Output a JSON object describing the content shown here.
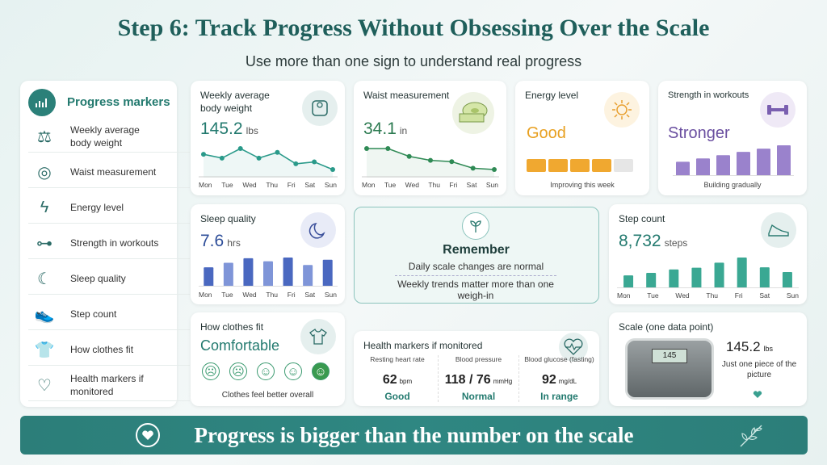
{
  "title": "Step 6: Track Progress Without Obsessing Over the Scale",
  "subtitle": "Use more than one sign to understand real progress",
  "sidebar": {
    "heading": "Progress markers",
    "items": [
      {
        "label": "Weekly average body weight",
        "icon": "scale-icon"
      },
      {
        "label": "Waist measurement",
        "icon": "tape-measure-icon"
      },
      {
        "label": "Energy level",
        "icon": "lightning-icon"
      },
      {
        "label": "Strength in workouts",
        "icon": "dumbbell-icon"
      },
      {
        "label": "Sleep quality",
        "icon": "moon-icon"
      },
      {
        "label": "Step count",
        "icon": "shoe-icon"
      },
      {
        "label": "How clothes fit",
        "icon": "shirt-icon"
      },
      {
        "label": "Health markers if monitored",
        "icon": "heart-icon"
      }
    ]
  },
  "days": [
    "Mon",
    "Tue",
    "Wed",
    "Thu",
    "Fri",
    "Sat",
    "Sun"
  ],
  "weight": {
    "title": "Weekly average body weight",
    "value": "145.2",
    "unit": "lbs",
    "series": [
      146.0,
      145.8,
      146.3,
      145.8,
      146.1,
      145.5,
      145.6,
      145.2
    ]
  },
  "waist": {
    "title": "Waist measurement",
    "value": "34.1",
    "unit": "in",
    "series": [
      34.9,
      34.9,
      34.6,
      34.45,
      34.4,
      34.15,
      34.1
    ]
  },
  "energy": {
    "title": "Energy level",
    "value": "Good",
    "caption": "Improving this week",
    "filled": 4,
    "total": 5
  },
  "strength": {
    "title": "Strength in workouts",
    "value": "Stronger",
    "caption": "Building gradually",
    "bars": [
      2,
      3,
      4,
      5,
      6,
      7
    ]
  },
  "sleep": {
    "title": "Sleep quality",
    "value": "7.6",
    "unit": "hrs",
    "bars": [
      6.6,
      7.2,
      7.8,
      7.4,
      7.9,
      6.9,
      7.6
    ]
  },
  "remember": {
    "title": "Remember",
    "line1": "Daily scale changes are normal",
    "line2": "Weekly trends matter more than one weigh-in"
  },
  "steps": {
    "title": "Step count",
    "value": "8,732",
    "unit": "steps",
    "bars": [
      6200,
      6800,
      7600,
      8000,
      9200,
      10400,
      8100,
      7000
    ]
  },
  "clothes": {
    "title": "How clothes fit",
    "value": "Comfortable",
    "caption": "Clothes feel better overall",
    "selected": 5
  },
  "health": {
    "title": "Health markers if monitored",
    "items": [
      {
        "label": "Resting heart rate",
        "value": "62",
        "unit": "bpm",
        "status": "Good"
      },
      {
        "label": "Blood pressure",
        "value": "118 / 76",
        "unit": "mmHg",
        "status": "Normal"
      },
      {
        "label": "Blood glucose (fasting)",
        "value": "92",
        "unit": "mg/dL",
        "status": "In range"
      }
    ]
  },
  "scale": {
    "title": "Scale (one data point)",
    "value": "145.2",
    "unit": "lbs",
    "caption": "Just one piece of the picture",
    "display": "145"
  },
  "banner": "Progress is bigger than the number on the scale",
  "colors": {
    "teal": "#237a6f",
    "purple": "#7a5fb0",
    "blue": "#4a6fc0",
    "orange": "#f0a830",
    "green": "#3a9a4f"
  }
}
